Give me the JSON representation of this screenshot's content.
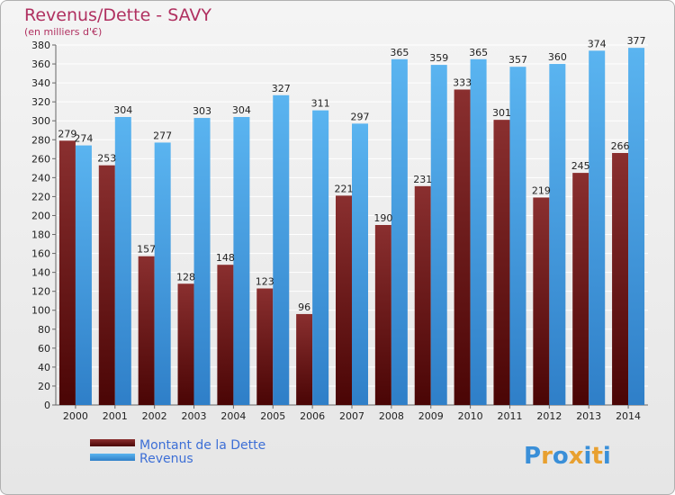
{
  "chart_data": {
    "type": "bar",
    "title": "Revenus/Dette - SAVY",
    "subtitle": "(en milliers d'€)",
    "categories": [
      "2000",
      "2001",
      "2002",
      "2003",
      "2004",
      "2005",
      "2006",
      "2007",
      "2008",
      "2009",
      "2010",
      "2011",
      "2012",
      "2013",
      "2014"
    ],
    "series": [
      {
        "name": "Montant de la Dette",
        "color": "#7a1f1f",
        "values": [
          279,
          253,
          157,
          128,
          148,
          123,
          96,
          221,
          190,
          231,
          333,
          301,
          219,
          245,
          266
        ]
      },
      {
        "name": "Revenus",
        "color": "#4aa3e8",
        "values": [
          274,
          304,
          277,
          303,
          304,
          327,
          311,
          297,
          365,
          359,
          365,
          357,
          360,
          374,
          377
        ]
      }
    ],
    "ylim": [
      0,
      380
    ],
    "ytick_step": 20,
    "grid": true,
    "legend_position": "bottom-left"
  },
  "logo": {
    "text": "Proxiti"
  }
}
